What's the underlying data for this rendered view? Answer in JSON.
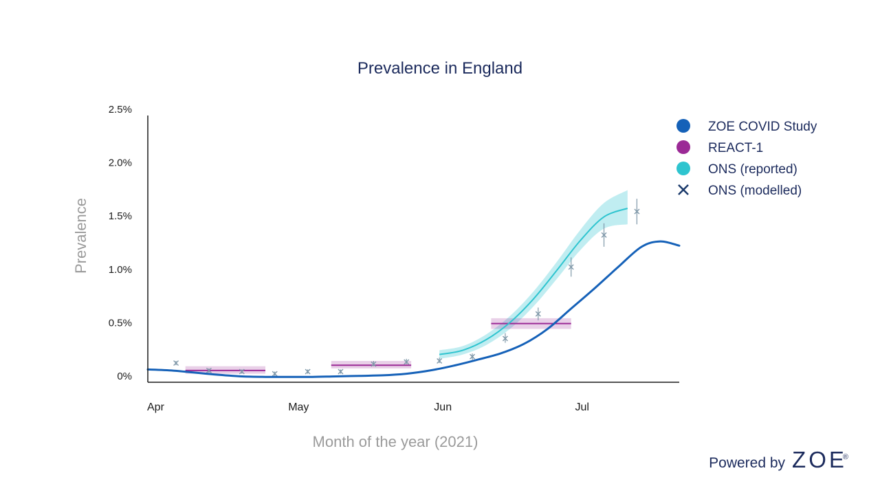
{
  "chart_data": {
    "type": "line",
    "title": "Prevalence in England",
    "xlabel": "Month of the year (2021)",
    "ylabel": "Prevalence",
    "xlim": [
      "2021-04-01",
      "2021-07-23"
    ],
    "ylim": [
      0,
      2.5
    ],
    "x_ticks": [
      {
        "date": "2021-04-01",
        "label": "Apr"
      },
      {
        "date": "2021-05-01",
        "label": "May"
      },
      {
        "date": "2021-06-01",
        "label": "Jun"
      },
      {
        "date": "2021-07-01",
        "label": "Jul"
      }
    ],
    "y_ticks": [
      {
        "value": 0,
        "label": "0%"
      },
      {
        "value": 0.5,
        "label": "0.5%"
      },
      {
        "value": 1.0,
        "label": "1.0%"
      },
      {
        "value": 1.5,
        "label": "1.5%"
      },
      {
        "value": 2.0,
        "label": "2.0%"
      },
      {
        "value": 2.5,
        "label": "2.5%"
      }
    ],
    "grid": false,
    "legend_position": "top-right",
    "series": [
      {
        "name": "ZOE COVID Study",
        "kind": "line",
        "color": "#1561b8",
        "points": [
          {
            "x": "2021-04-01",
            "y": 0.12
          },
          {
            "x": "2021-04-06",
            "y": 0.11
          },
          {
            "x": "2021-04-11",
            "y": 0.09
          },
          {
            "x": "2021-04-16",
            "y": 0.07
          },
          {
            "x": "2021-04-21",
            "y": 0.055
          },
          {
            "x": "2021-04-26",
            "y": 0.05
          },
          {
            "x": "2021-05-01",
            "y": 0.05
          },
          {
            "x": "2021-05-06",
            "y": 0.05
          },
          {
            "x": "2021-05-11",
            "y": 0.055
          },
          {
            "x": "2021-05-16",
            "y": 0.06
          },
          {
            "x": "2021-05-21",
            "y": 0.065
          },
          {
            "x": "2021-05-26",
            "y": 0.08
          },
          {
            "x": "2021-05-31",
            "y": 0.11
          },
          {
            "x": "2021-06-05",
            "y": 0.155
          },
          {
            "x": "2021-06-10",
            "y": 0.21
          },
          {
            "x": "2021-06-15",
            "y": 0.27
          },
          {
            "x": "2021-06-20",
            "y": 0.36
          },
          {
            "x": "2021-06-25",
            "y": 0.5
          },
          {
            "x": "2021-06-30",
            "y": 0.69
          },
          {
            "x": "2021-07-05",
            "y": 0.88
          },
          {
            "x": "2021-07-10",
            "y": 1.08
          },
          {
            "x": "2021-07-15",
            "y": 1.27
          },
          {
            "x": "2021-07-19",
            "y": 1.32
          },
          {
            "x": "2021-07-23",
            "y": 1.28
          }
        ]
      },
      {
        "name": "REACT-1",
        "kind": "interval",
        "color": "#9b2a96",
        "bands": [
          {
            "start": "2021-04-09",
            "end": "2021-04-26",
            "y": 0.11,
            "low": 0.08,
            "high": 0.15
          },
          {
            "start": "2021-05-10",
            "end": "2021-05-27",
            "y": 0.16,
            "low": 0.13,
            "high": 0.2
          },
          {
            "start": "2021-06-13",
            "end": "2021-06-30",
            "y": 0.55,
            "low": 0.5,
            "high": 0.6
          }
        ]
      },
      {
        "name": "ONS (reported)",
        "kind": "line_band",
        "color": "#2ec4cf",
        "points": [
          {
            "x": "2021-06-02",
            "y": 0.26,
            "low": 0.22,
            "high": 0.3
          },
          {
            "x": "2021-06-07",
            "y": 0.3,
            "low": 0.26,
            "high": 0.34
          },
          {
            "x": "2021-06-12",
            "y": 0.4,
            "low": 0.35,
            "high": 0.45
          },
          {
            "x": "2021-06-17",
            "y": 0.56,
            "low": 0.5,
            "high": 0.62
          },
          {
            "x": "2021-06-22",
            "y": 0.78,
            "low": 0.71,
            "high": 0.85
          },
          {
            "x": "2021-06-27",
            "y": 1.05,
            "low": 0.97,
            "high": 1.13
          },
          {
            "x": "2021-07-02",
            "y": 1.33,
            "low": 1.24,
            "high": 1.43
          },
          {
            "x": "2021-07-07",
            "y": 1.55,
            "low": 1.44,
            "high": 1.68
          },
          {
            "x": "2021-07-12",
            "y": 1.63,
            "low": 1.48,
            "high": 1.8
          }
        ]
      },
      {
        "name": "ONS (modelled)",
        "kind": "scatter",
        "color": "#7e97a8",
        "points": [
          {
            "x": "2021-04-07",
            "y": 0.18,
            "low": 0.16,
            "high": 0.2
          },
          {
            "x": "2021-04-14",
            "y": 0.11,
            "low": 0.09,
            "high": 0.13
          },
          {
            "x": "2021-04-21",
            "y": 0.1,
            "low": 0.08,
            "high": 0.12
          },
          {
            "x": "2021-04-28",
            "y": 0.08,
            "low": 0.06,
            "high": 0.1
          },
          {
            "x": "2021-05-05",
            "y": 0.1,
            "low": 0.08,
            "high": 0.12
          },
          {
            "x": "2021-05-12",
            "y": 0.1,
            "low": 0.08,
            "high": 0.12
          },
          {
            "x": "2021-05-19",
            "y": 0.17,
            "low": 0.15,
            "high": 0.2
          },
          {
            "x": "2021-05-26",
            "y": 0.19,
            "low": 0.17,
            "high": 0.22
          },
          {
            "x": "2021-06-02",
            "y": 0.2,
            "low": 0.18,
            "high": 0.23
          },
          {
            "x": "2021-06-09",
            "y": 0.24,
            "low": 0.21,
            "high": 0.27
          },
          {
            "x": "2021-06-16",
            "y": 0.41,
            "low": 0.37,
            "high": 0.46
          },
          {
            "x": "2021-06-23",
            "y": 0.64,
            "low": 0.58,
            "high": 0.7
          },
          {
            "x": "2021-06-30",
            "y": 1.08,
            "low": 0.99,
            "high": 1.17
          },
          {
            "x": "2021-07-07",
            "y": 1.38,
            "low": 1.27,
            "high": 1.49
          },
          {
            "x": "2021-07-14",
            "y": 1.6,
            "low": 1.48,
            "high": 1.72
          }
        ]
      }
    ]
  },
  "legend": {
    "items": [
      {
        "name": "ZOE COVID Study",
        "marker": "circle",
        "color": "#1561b8"
      },
      {
        "name": "REACT-1",
        "marker": "circle",
        "color": "#9b2a96"
      },
      {
        "name": "ONS (reported)",
        "marker": "circle",
        "color": "#2ec4cf"
      },
      {
        "name": "ONS (modelled)",
        "marker": "cross",
        "color": "#1b3a6b"
      }
    ]
  },
  "footer": {
    "powered_by": "Powered by",
    "brand": "ZOE",
    "registered": "®"
  }
}
